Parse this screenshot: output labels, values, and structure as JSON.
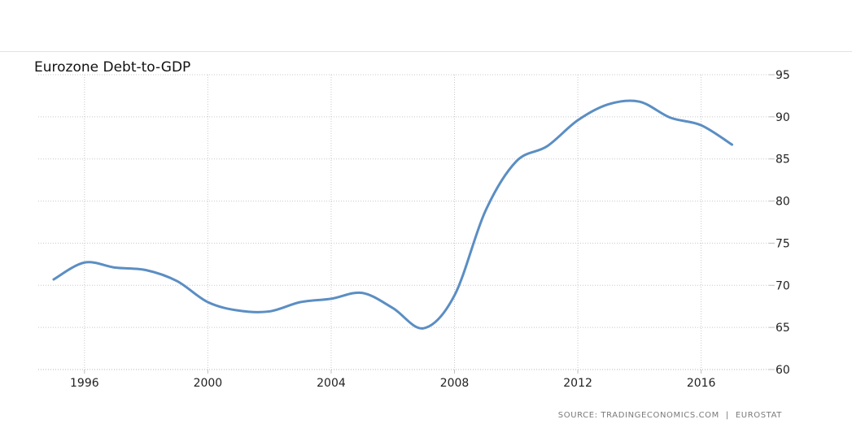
{
  "title": "Eurozone Debt-to-GDP",
  "source": {
    "prefix": "SOURCE:",
    "site": "TRADINGECONOMICS.COM",
    "separator": "|",
    "provider": "EUROSTAT"
  },
  "colors": {
    "line": "#5b8ec3",
    "grid": "#c8c8c8",
    "tick_text": "#222222"
  },
  "chart_data": {
    "type": "line",
    "title": "Eurozone Debt-to-GDP",
    "xlabel": "",
    "ylabel": "",
    "xlim": [
      1994.5,
      2018.2
    ],
    "ylim": [
      60,
      95
    ],
    "x_ticks": [
      1996,
      2000,
      2004,
      2008,
      2012,
      2016
    ],
    "y_ticks": [
      60,
      65,
      70,
      75,
      80,
      85,
      90,
      95
    ],
    "y_axis_position": "right",
    "grid": true,
    "series": [
      {
        "x": [
          1995,
          1996,
          1997,
          1998,
          1999,
          2000,
          2001,
          2002,
          2003,
          2004,
          2005,
          2006,
          2007,
          2008,
          2009,
          2010,
          2011,
          2012,
          2013,
          2014,
          2015,
          2016,
          2017
        ],
        "values": [
          70.7,
          72.7,
          72.1,
          71.8,
          70.5,
          68.0,
          67.0,
          66.9,
          68.0,
          68.4,
          69.1,
          67.3,
          64.9,
          68.8,
          78.8,
          84.7,
          86.5,
          89.6,
          91.5,
          91.8,
          89.9,
          89.0,
          86.7
        ]
      }
    ]
  }
}
